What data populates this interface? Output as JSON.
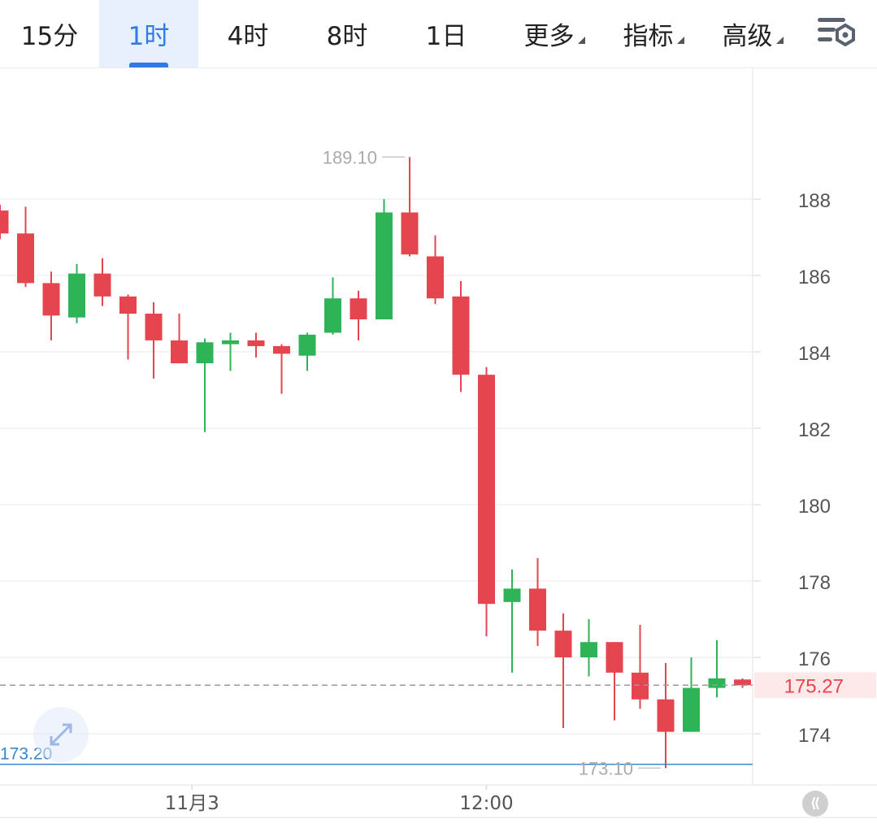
{
  "toolbar": {
    "tabs": [
      {
        "label": "15分",
        "active": false
      },
      {
        "label": "1时",
        "active": true
      },
      {
        "label": "4时",
        "active": false
      },
      {
        "label": "8时",
        "active": false
      },
      {
        "label": "1日",
        "active": false
      }
    ],
    "menus": [
      {
        "label": "更多"
      },
      {
        "label": "指标"
      },
      {
        "label": "高级"
      }
    ],
    "settings_icon": "chart-settings-icon"
  },
  "colors": {
    "up": "#2eb356",
    "down": "#e5454f",
    "accent": "#2f7ae5",
    "last_price": "#e5454f",
    "axis_text": "#555555",
    "annotation_text": "#aaaaaa"
  },
  "chart_data": {
    "type": "candlestick",
    "ylim": [
      172.4,
      191.0
    ],
    "y_ticks": [
      174,
      176,
      178,
      180,
      182,
      184,
      186,
      188
    ],
    "x_tick_labels": [
      {
        "label": "11月3",
        "index": 7.5
      },
      {
        "label": "12:00",
        "index": 19
      }
    ],
    "candles": [
      {
        "open": 187.7,
        "high": 187.85,
        "close": 187.1,
        "low": 186.95
      },
      {
        "open": 187.1,
        "high": 187.8,
        "close": 185.8,
        "low": 185.7
      },
      {
        "open": 185.8,
        "high": 186.1,
        "close": 184.95,
        "low": 184.3
      },
      {
        "open": 184.9,
        "high": 186.3,
        "close": 186.05,
        "low": 184.75
      },
      {
        "open": 186.05,
        "high": 186.45,
        "close": 185.45,
        "low": 185.2
      },
      {
        "open": 185.45,
        "high": 185.5,
        "close": 185.0,
        "low": 183.8
      },
      {
        "open": 185.0,
        "high": 185.3,
        "close": 184.3,
        "low": 183.3
      },
      {
        "open": 184.3,
        "high": 185.0,
        "close": 183.7,
        "low": 183.7
      },
      {
        "open": 183.7,
        "high": 184.35,
        "close": 184.25,
        "low": 181.9
      },
      {
        "open": 184.2,
        "high": 184.5,
        "close": 184.3,
        "low": 183.5
      },
      {
        "open": 184.3,
        "high": 184.5,
        "close": 184.15,
        "low": 183.85
      },
      {
        "open": 184.15,
        "high": 184.2,
        "close": 183.95,
        "low": 182.9
      },
      {
        "open": 183.9,
        "high": 184.5,
        "close": 184.45,
        "low": 183.5
      },
      {
        "open": 184.5,
        "high": 185.95,
        "close": 185.4,
        "low": 184.45
      },
      {
        "open": 185.4,
        "high": 185.6,
        "close": 184.85,
        "low": 184.3
      },
      {
        "open": 184.85,
        "high": 188.0,
        "close": 187.65,
        "low": 184.85
      },
      {
        "open": 187.65,
        "high": 189.1,
        "close": 186.55,
        "low": 186.5
      },
      {
        "open": 186.5,
        "high": 187.05,
        "close": 185.4,
        "low": 185.25
      },
      {
        "open": 185.45,
        "high": 185.85,
        "close": 183.4,
        "low": 182.95
      },
      {
        "open": 183.4,
        "high": 183.6,
        "close": 177.4,
        "low": 176.55
      },
      {
        "open": 177.45,
        "high": 178.3,
        "close": 177.8,
        "low": 175.6
      },
      {
        "open": 177.8,
        "high": 178.6,
        "close": 176.7,
        "low": 176.3
      },
      {
        "open": 176.7,
        "high": 177.15,
        "close": 176.0,
        "low": 174.15
      },
      {
        "open": 176.0,
        "high": 177.0,
        "close": 176.4,
        "low": 175.5
      },
      {
        "open": 176.4,
        "high": 176.4,
        "close": 175.6,
        "low": 174.35
      },
      {
        "open": 175.6,
        "high": 176.85,
        "close": 174.9,
        "low": 174.65
      },
      {
        "open": 174.9,
        "high": 175.85,
        "close": 174.05,
        "low": 173.1
      },
      {
        "open": 174.05,
        "high": 176.0,
        "close": 175.2,
        "low": 174.05
      },
      {
        "open": 175.2,
        "high": 176.45,
        "close": 175.45,
        "low": 174.95
      },
      {
        "open": 175.42,
        "high": 175.45,
        "close": 175.27,
        "low": 175.2
      }
    ],
    "last_price": 175.27,
    "last_price_label": "175.27",
    "max_annotation": {
      "label": "189.10",
      "value": 189.1,
      "index": 16
    },
    "min_annotation": {
      "label": "173.10",
      "value": 173.1,
      "index": 26
    },
    "reference_line": {
      "label": "173.20",
      "value": 173.2
    }
  }
}
